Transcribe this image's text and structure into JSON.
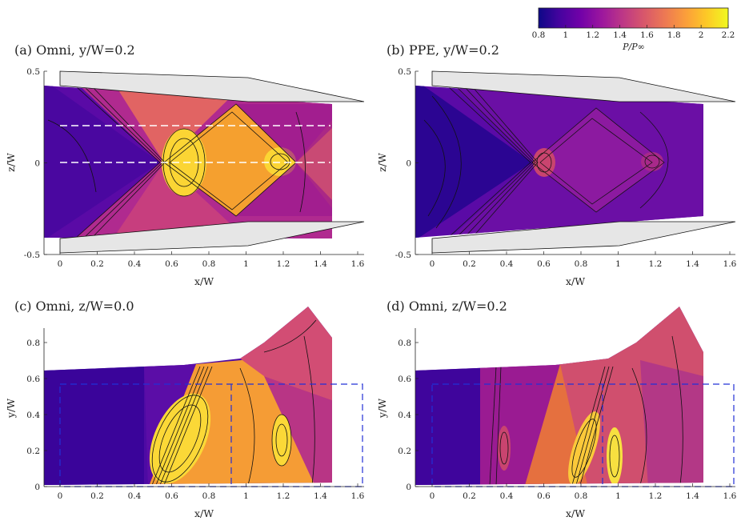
{
  "chart_data": [
    {
      "type": "heatmap",
      "panel": "a",
      "title": "(a) Omni, y/W=0.2",
      "xlabel": "x/W",
      "ylabel": "z/W",
      "xlim": [
        -0.08,
        1.66
      ],
      "ylim": [
        -0.5,
        0.5
      ],
      "xticks": [
        0,
        0.2,
        0.4,
        0.6,
        0.8,
        1,
        1.2,
        1.4,
        1.6
      ],
      "yticks": [
        -0.5,
        0,
        0.5
      ],
      "colormap": "plasma",
      "shock_origin_x": 0.56,
      "peak_value": 2.2,
      "dashed_lines_z": [
        0.2,
        0.0
      ],
      "features": "expansion fan crossing at x/W~0.56; compression diamond peaking near x/W~0.9-1.2"
    },
    {
      "type": "heatmap",
      "panel": "b",
      "title": "(b) PPE, y/W=0.2",
      "xlabel": "x/W",
      "ylabel": "z/W",
      "xlim": [
        -0.08,
        1.66
      ],
      "ylim": [
        -0.5,
        0.5
      ],
      "xticks": [
        0,
        0.2,
        0.4,
        0.6,
        0.8,
        1,
        1.2,
        1.4,
        1.6
      ],
      "yticks": [
        -0.5,
        0,
        0.5
      ],
      "colormap": "plasma",
      "shock_origin_x": 0.56,
      "peak_value": 1.5
    },
    {
      "type": "heatmap",
      "panel": "c",
      "title": "(c) Omni, z/W=0.0",
      "xlabel": "x/W",
      "ylabel": "y/W",
      "xlim": [
        -0.08,
        1.66
      ],
      "ylim": [
        0,
        0.88
      ],
      "xticks": [
        0,
        0.2,
        0.4,
        0.6,
        0.8,
        1,
        1.2,
        1.4,
        1.6
      ],
      "yticks": [
        0,
        0.2,
        0.4,
        0.6,
        0.8
      ],
      "colormap": "plasma",
      "peak_value": 2.2,
      "dashed_box": {
        "x": [
          0,
          1.66
        ],
        "y": [
          0,
          0.56
        ],
        "divider_x": 0.94
      }
    },
    {
      "type": "heatmap",
      "panel": "d",
      "title": "(d) Omni, z/W=0.2",
      "xlabel": "x/W",
      "ylabel": "y/W",
      "xlim": [
        -0.08,
        1.66
      ],
      "ylim": [
        0,
        0.88
      ],
      "xticks": [
        0,
        0.2,
        0.4,
        0.6,
        0.8,
        1,
        1.2,
        1.4,
        1.6
      ],
      "yticks": [
        0,
        0.2,
        0.4,
        0.6,
        0.8
      ],
      "colormap": "plasma",
      "peak_value": 2.2,
      "dashed_box": {
        "x": [
          0,
          1.66
        ],
        "y": [
          0,
          0.56
        ],
        "divider_x": 0.94
      }
    }
  ],
  "colorbar": {
    "label": "P/P∞",
    "min": 0.8,
    "max": 2.2,
    "ticks": [
      "0.8",
      "1",
      "1.2",
      "1.4",
      "1.6",
      "1.8",
      "2",
      "2.2"
    ],
    "stops": [
      "#0d0887",
      "#46039f",
      "#7201a8",
      "#9c179e",
      "#bd3786",
      "#d8576b",
      "#ed7953",
      "#fb9f3a",
      "#fdca26",
      "#f0f921"
    ]
  }
}
